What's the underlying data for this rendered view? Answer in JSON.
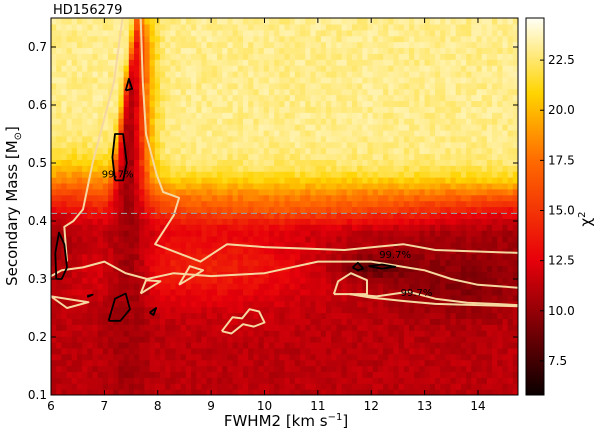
{
  "chart_data": {
    "type": "heatmap",
    "title": "HD156279",
    "xlabel": "FWHM2 [km s$^{-1}$]",
    "xlabel_main": "FWHM2 [km s",
    "xlabel_sup": "−1",
    "xlabel_tail": "]",
    "ylabel": "Secondary Mass [M⊙]",
    "ylabel_main": "Secondary Mass [M",
    "ylabel_sub": "⊙",
    "ylabel_tail": "]",
    "colorbar_label": "χ",
    "colorbar_label_sup": "2",
    "xlim": [
      6.0,
      14.75
    ],
    "ylim": [
      0.1,
      0.75
    ],
    "x_ticks": [
      6,
      7,
      8,
      9,
      10,
      11,
      12,
      13,
      14
    ],
    "y_ticks": [
      0.1,
      0.2,
      0.3,
      0.4,
      0.5,
      0.6,
      0.7
    ],
    "colorbar_range": [
      5.8,
      24.6
    ],
    "colorbar_ticks": [
      7.5,
      10.0,
      12.5,
      15.0,
      17.5,
      20.0,
      22.5
    ],
    "colormap": "hot",
    "dashed_line_y": 0.413,
    "grid": false,
    "contour_labels": [
      {
        "text": "99.7%",
        "x": 6.95,
        "y": 0.475
      },
      {
        "text": "99.7%",
        "x": 12.15,
        "y": 0.336
      },
      {
        "text": "99.7%",
        "x": 12.55,
        "y": 0.271
      }
    ],
    "contours_99_7": [
      [
        [
          6.3,
          0.33
        ],
        [
          6.25,
          0.39
        ],
        [
          6.42,
          0.4
        ],
        [
          6.6,
          0.42
        ],
        [
          6.78,
          0.5
        ],
        [
          6.98,
          0.57
        ],
        [
          7.18,
          0.64
        ],
        [
          7.34,
          0.75
        ],
        [
          7.68,
          0.75
        ],
        [
          7.72,
          0.64
        ],
        [
          7.78,
          0.55
        ],
        [
          7.98,
          0.48
        ],
        [
          8.1,
          0.45
        ],
        [
          8.4,
          0.44
        ],
        [
          8.3,
          0.41
        ],
        [
          7.95,
          0.36
        ],
        [
          8.8,
          0.33
        ],
        [
          9.3,
          0.36
        ],
        [
          10.0,
          0.355
        ],
        [
          11.5,
          0.35
        ],
        [
          12.6,
          0.36
        ],
        [
          13.2,
          0.35
        ],
        [
          14.75,
          0.345
        ]
      ],
      [
        [
          6.0,
          0.305
        ],
        [
          6.2,
          0.315
        ],
        [
          6.6,
          0.32
        ],
        [
          7.0,
          0.33
        ],
        [
          7.4,
          0.31
        ],
        [
          7.8,
          0.3
        ],
        [
          8.3,
          0.31
        ],
        [
          9.0,
          0.305
        ],
        [
          10.0,
          0.31
        ],
        [
          11.0,
          0.33
        ],
        [
          12.0,
          0.33
        ],
        [
          13.0,
          0.315
        ],
        [
          13.5,
          0.3
        ],
        [
          14.0,
          0.29
        ],
        [
          14.75,
          0.285
        ]
      ],
      [
        [
          11.6,
          0.274
        ],
        [
          12.1,
          0.27
        ],
        [
          12.7,
          0.278
        ],
        [
          13.2,
          0.266
        ],
        [
          13.8,
          0.259
        ],
        [
          14.3,
          0.257
        ],
        [
          14.75,
          0.255
        ]
      ],
      [
        [
          11.6,
          0.274
        ],
        [
          12.0,
          0.268
        ],
        [
          12.6,
          0.262
        ],
        [
          13.2,
          0.257
        ],
        [
          14.0,
          0.255
        ],
        [
          14.75,
          0.253
        ]
      ],
      [
        [
          9.2,
          0.21
        ],
        [
          9.4,
          0.234
        ],
        [
          9.58,
          0.232
        ],
        [
          9.72,
          0.248
        ],
        [
          9.9,
          0.244
        ],
        [
          10.0,
          0.225
        ],
        [
          9.8,
          0.218
        ],
        [
          9.6,
          0.222
        ],
        [
          9.38,
          0.206
        ],
        [
          9.2,
          0.21
        ]
      ],
      [
        [
          7.68,
          0.275
        ],
        [
          8.05,
          0.296
        ],
        [
          7.78,
          0.298
        ],
        [
          7.68,
          0.275
        ]
      ],
      [
        [
          8.4,
          0.29
        ],
        [
          8.85,
          0.315
        ],
        [
          8.6,
          0.322
        ],
        [
          8.4,
          0.29
        ]
      ],
      [
        [
          11.3,
          0.274
        ],
        [
          11.92,
          0.274
        ],
        [
          11.92,
          0.298
        ],
        [
          11.62,
          0.31
        ],
        [
          11.38,
          0.296
        ],
        [
          11.3,
          0.274
        ]
      ],
      [
        [
          6.0,
          0.27
        ],
        [
          6.3,
          0.25
        ],
        [
          6.7,
          0.26
        ],
        [
          6.0,
          0.27
        ]
      ]
    ],
    "contours_black": [
      [
        [
          7.2,
          0.47
        ],
        [
          7.15,
          0.51
        ],
        [
          7.2,
          0.55
        ],
        [
          7.35,
          0.55
        ],
        [
          7.42,
          0.5
        ],
        [
          7.35,
          0.47
        ],
        [
          7.2,
          0.47
        ]
      ],
      [
        [
          6.1,
          0.3
        ],
        [
          6.08,
          0.345
        ],
        [
          6.15,
          0.38
        ],
        [
          6.25,
          0.36
        ],
        [
          6.3,
          0.32
        ],
        [
          6.2,
          0.3
        ],
        [
          6.1,
          0.3
        ]
      ],
      [
        [
          7.08,
          0.228
        ],
        [
          7.2,
          0.266
        ],
        [
          7.4,
          0.275
        ],
        [
          7.48,
          0.248
        ],
        [
          7.3,
          0.228
        ],
        [
          7.08,
          0.228
        ]
      ],
      [
        [
          11.65,
          0.32
        ],
        [
          11.75,
          0.328
        ],
        [
          11.85,
          0.318
        ],
        [
          11.75,
          0.315
        ],
        [
          11.65,
          0.32
        ]
      ],
      [
        [
          11.95,
          0.322
        ],
        [
          12.2,
          0.325
        ],
        [
          12.45,
          0.321
        ],
        [
          12.2,
          0.318
        ],
        [
          11.95,
          0.322
        ]
      ],
      [
        [
          7.4,
          0.625
        ],
        [
          7.46,
          0.645
        ],
        [
          7.52,
          0.628
        ],
        [
          7.4,
          0.625
        ]
      ],
      [
        [
          6.68,
          0.271
        ],
        [
          6.78,
          0.273
        ],
        [
          6.68,
          0.269
        ]
      ],
      [
        [
          7.85,
          0.242
        ],
        [
          7.97,
          0.25
        ],
        [
          7.92,
          0.238
        ],
        [
          7.85,
          0.242
        ]
      ]
    ]
  }
}
